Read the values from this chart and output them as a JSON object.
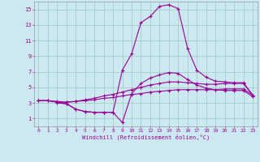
{
  "xlabel": "Windchill (Refroidissement éolien,°C)",
  "background_color": "#cce8f0",
  "grid_color": "#99ccbb",
  "line_color": "#990099",
  "xlim": [
    -0.5,
    23.5
  ],
  "ylim": [
    0,
    16
  ],
  "xticks": [
    0,
    1,
    2,
    3,
    4,
    5,
    6,
    7,
    8,
    9,
    10,
    11,
    12,
    13,
    14,
    15,
    16,
    17,
    18,
    19,
    20,
    21,
    22,
    23
  ],
  "yticks": [
    1,
    3,
    5,
    7,
    9,
    11,
    13,
    15
  ],
  "line1_x": [
    0,
    1,
    2,
    3,
    4,
    5,
    6,
    7,
    8,
    9,
    10,
    11,
    12,
    13,
    14,
    15,
    16,
    17,
    18,
    19,
    20,
    21,
    22,
    23
  ],
  "line1_y": [
    3.3,
    3.3,
    3.1,
    3.1,
    3.2,
    3.3,
    3.4,
    3.6,
    3.7,
    3.9,
    4.1,
    4.2,
    4.4,
    4.5,
    4.6,
    4.7,
    4.7,
    4.7,
    4.7,
    4.7,
    4.8,
    4.8,
    4.8,
    4.0
  ],
  "line2_x": [
    0,
    1,
    2,
    3,
    4,
    5,
    6,
    7,
    8,
    9,
    10,
    11,
    12,
    13,
    14,
    15,
    16,
    17,
    18,
    19,
    20,
    21,
    22,
    23
  ],
  "line2_y": [
    3.3,
    3.3,
    3.2,
    3.1,
    3.2,
    3.4,
    3.6,
    3.9,
    4.1,
    4.4,
    4.7,
    5.0,
    5.3,
    5.5,
    5.7,
    5.7,
    5.6,
    5.5,
    5.4,
    5.4,
    5.5,
    5.5,
    5.5,
    4.0
  ],
  "line3_x": [
    0,
    1,
    2,
    3,
    4,
    5,
    6,
    7,
    8,
    9,
    10,
    11,
    12,
    13,
    14,
    15,
    16,
    17,
    18,
    19,
    20,
    21,
    22,
    23
  ],
  "line3_y": [
    3.3,
    3.3,
    3.1,
    2.9,
    2.2,
    1.9,
    1.8,
    1.8,
    1.8,
    7.2,
    9.3,
    13.3,
    14.1,
    15.4,
    15.6,
    15.1,
    10.0,
    7.2,
    6.3,
    5.8,
    5.7,
    5.6,
    5.6,
    4.0
  ],
  "line4_x": [
    2,
    3,
    4,
    5,
    6,
    7,
    8,
    9,
    10,
    11,
    12,
    13,
    14,
    15,
    16,
    17,
    18,
    19,
    20,
    21,
    22,
    23
  ],
  "line4_y": [
    3.0,
    2.9,
    2.2,
    1.9,
    1.8,
    1.8,
    1.8,
    0.5,
    4.2,
    5.5,
    6.2,
    6.6,
    6.9,
    6.8,
    6.0,
    5.3,
    4.9,
    4.7,
    4.6,
    4.6,
    4.6,
    3.8
  ]
}
